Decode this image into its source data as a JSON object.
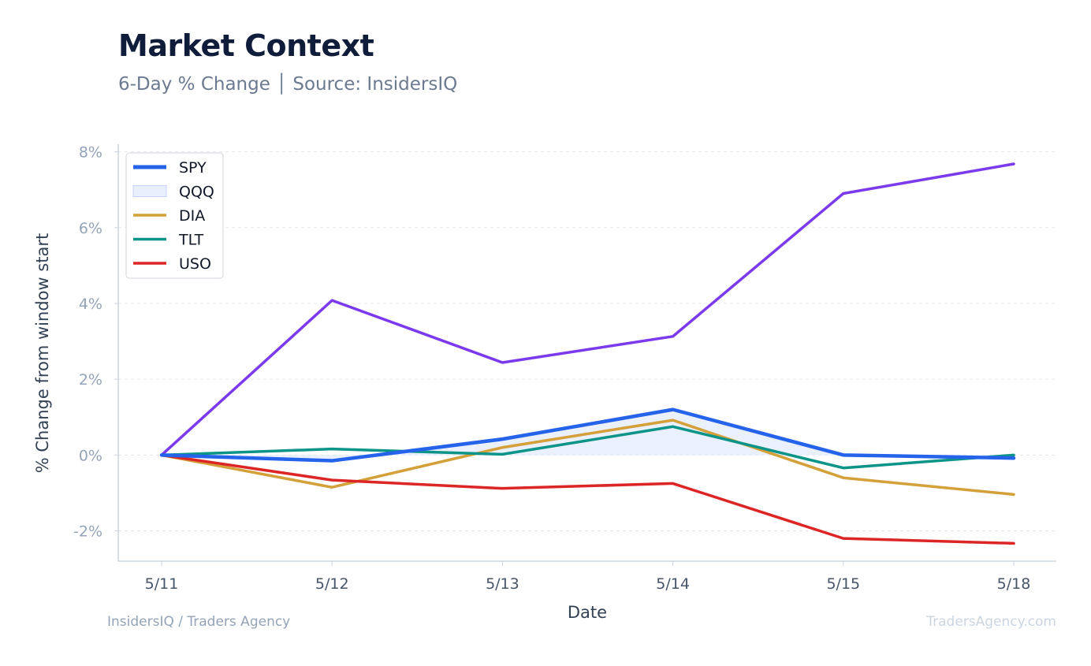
{
  "header": {
    "title": "Market Context",
    "subtitle": "6-Day % Change │ Source: InsidersIQ"
  },
  "footer": {
    "left": "InsidersIQ / Traders Agency",
    "right": "TradersAgency.com"
  },
  "chart_data": {
    "type": "line",
    "xlabel": "Date",
    "ylabel": "% Change from window start",
    "categories": [
      "5/11",
      "5/12",
      "5/13",
      "5/14",
      "5/15",
      "5/18"
    ],
    "ylim": [
      -2.8,
      8.2
    ],
    "yticks": [
      8,
      6,
      4,
      2,
      0,
      -2
    ],
    "ytick_labels": [
      "8%",
      "6%",
      "4%",
      "2%",
      "0%",
      "-2%"
    ],
    "grid": true,
    "legend_position": "top-left",
    "series": [
      {
        "name": "SPY",
        "color": "#2563eb",
        "values": [
          0.0,
          -0.15,
          0.42,
          1.2,
          0.0,
          -0.08
        ]
      },
      {
        "name": "QQQ",
        "color": "#7c3aed",
        "values": [
          0.0,
          4.08,
          2.44,
          3.13,
          6.9,
          7.68
        ]
      },
      {
        "name": "DIA",
        "color": "#d4a03a",
        "values": [
          0.0,
          -0.85,
          0.2,
          0.92,
          -0.6,
          -1.04
        ]
      },
      {
        "name": "TLT",
        "color": "#0d9488",
        "values": [
          0.0,
          0.16,
          0.02,
          0.75,
          -0.34,
          0.0
        ]
      },
      {
        "name": "USO",
        "color": "#dc2626",
        "values": [
          0.0,
          -0.66,
          -0.88,
          -0.75,
          -2.2,
          -2.33
        ]
      }
    ],
    "shaded_area": {
      "series": "SPY",
      "fill": "#dbe4fb"
    },
    "legend": [
      {
        "label": "SPY",
        "swatch": "line",
        "color": "#2563eb"
      },
      {
        "label": "QQQ",
        "swatch": "area",
        "color": "#dbe4fb"
      },
      {
        "label": "DIA",
        "swatch": "line",
        "color": "#d4a03a"
      },
      {
        "label": "TLT",
        "swatch": "line",
        "color": "#0d9488"
      },
      {
        "label": "USO",
        "swatch": "line",
        "color": "#dc2626"
      }
    ]
  }
}
